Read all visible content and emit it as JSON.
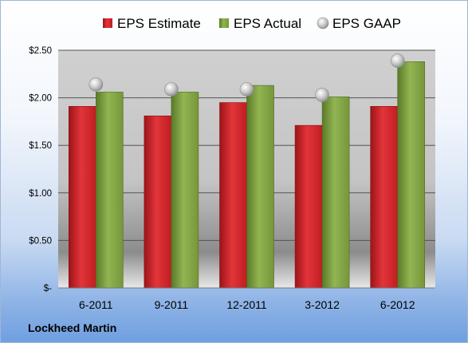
{
  "chart_data": {
    "type": "bar",
    "title": "",
    "xlabel": "",
    "ylabel": "",
    "categories": [
      "6-2011",
      "9-2011",
      "12-2011",
      "3-2012",
      "6-2012"
    ],
    "series": [
      {
        "name": "EPS Estimate",
        "kind": "bar",
        "color": "#cc1f26",
        "values": [
          1.91,
          1.81,
          1.95,
          1.71,
          1.91
        ]
      },
      {
        "name": "EPS Actual",
        "kind": "bar",
        "color": "#7fa23c",
        "values": [
          2.06,
          2.06,
          2.13,
          2.01,
          2.38
        ]
      },
      {
        "name": "EPS GAAP",
        "kind": "marker",
        "color": "#b8b8b8",
        "values": [
          2.14,
          2.09,
          2.09,
          2.03,
          2.39
        ]
      }
    ],
    "ylim": [
      0,
      2.5
    ],
    "yticks": [
      {
        "value": 0,
        "label": "$-"
      },
      {
        "value": 0.5,
        "label": "$0.50"
      },
      {
        "value": 1.0,
        "label": "$1.00"
      },
      {
        "value": 1.5,
        "label": "$1.50"
      },
      {
        "value": 2.0,
        "label": "$2.00"
      },
      {
        "value": 2.5,
        "label": "$2.50"
      }
    ],
    "grid": true,
    "legend_position": "top"
  },
  "footer": {
    "company": "Lockheed Martin"
  }
}
